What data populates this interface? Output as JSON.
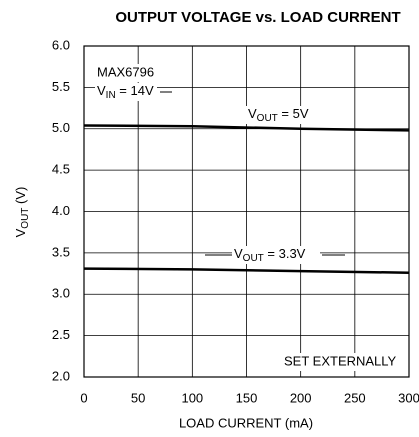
{
  "chart_data": {
    "type": "line",
    "title": "OUTPUT VOLTAGE vs. LOAD CURRENT",
    "x_label": "LOAD CURRENT (mA)",
    "y_label": {
      "main": "V",
      "sub": "OUT",
      "rest": " (V)"
    },
    "x": [
      0,
      100,
      200,
      300
    ],
    "series": [
      {
        "name": {
          "main": "V",
          "sub": "OUT",
          "rest": " = 5V"
        },
        "color": "#000000",
        "values": [
          5.04,
          5.03,
          5.0,
          4.98
        ]
      },
      {
        "name": {
          "main": "V",
          "sub": "OUT",
          "rest": " = 3.3V"
        },
        "color": "#000000",
        "values": [
          3.31,
          3.3,
          3.28,
          3.26
        ]
      }
    ],
    "annotations": [
      {
        "text": "MAX6796"
      },
      {
        "main": "V",
        "sub": "IN",
        "rest": " = 14V"
      },
      {
        "text": "SET EXTERNALLY"
      }
    ],
    "xlim": [
      0,
      300
    ],
    "xticks": [
      0,
      50,
      100,
      150,
      200,
      250,
      300
    ],
    "ylim": [
      2,
      6
    ],
    "yticks": [
      {
        "value": 2,
        "label": "2.0"
      },
      {
        "value": 2.5,
        "label": "2.5"
      },
      {
        "value": 3,
        "label": "3.0"
      },
      {
        "value": 3.5,
        "label": "3.5"
      },
      {
        "value": 4,
        "label": "4.0"
      },
      {
        "value": 4.5,
        "label": "4.5"
      },
      {
        "value": 5,
        "label": "5.0"
      },
      {
        "value": 5.5,
        "label": "5.5"
      },
      {
        "value": 6,
        "label": "6.0"
      }
    ],
    "grid": true
  }
}
